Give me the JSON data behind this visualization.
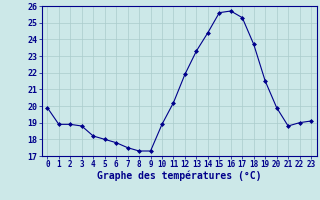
{
  "hours": [
    0,
    1,
    2,
    3,
    4,
    5,
    6,
    7,
    8,
    9,
    10,
    11,
    12,
    13,
    14,
    15,
    16,
    17,
    18,
    19,
    20,
    21,
    22,
    23
  ],
  "temperatures": [
    19.9,
    18.9,
    18.9,
    18.8,
    18.2,
    18.0,
    17.8,
    17.5,
    17.3,
    17.3,
    18.9,
    20.2,
    21.9,
    23.3,
    24.4,
    25.6,
    25.7,
    25.3,
    23.7,
    21.5,
    19.9,
    18.8,
    19.0,
    19.1
  ],
  "ylim": [
    17,
    26
  ],
  "yticks": [
    17,
    18,
    19,
    20,
    21,
    22,
    23,
    24,
    25,
    26
  ],
  "xlabel": "Graphe des températures (°C)",
  "line_color": "#00008b",
  "marker": "D",
  "marker_size": 2.0,
  "bg_color": "#cce8e8",
  "grid_color": "#aacccc",
  "axis_color": "#00008b",
  "tick_color": "#00008b",
  "label_color": "#00008b",
  "tick_fontsize": 5.5,
  "ylabel_fontsize": 6.0,
  "xlabel_fontsize": 7.0
}
